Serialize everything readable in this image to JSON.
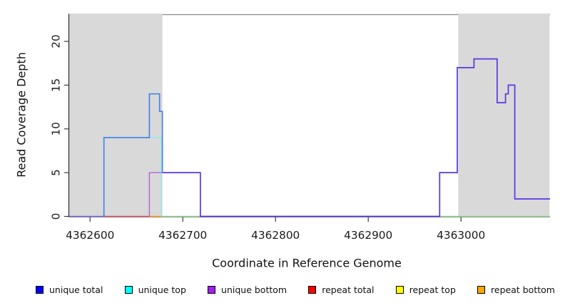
{
  "chart_data": {
    "type": "line",
    "subtype": "step-coverage-plot",
    "title": "",
    "xlabel": "Coordinate in Reference Genome",
    "ylabel": "Read Coverage Depth",
    "xlim": [
      4362577.5,
      4363096
    ],
    "ylim": [
      0,
      23.1
    ],
    "x_ticks": [
      4362600,
      4362700,
      4362800,
      4362900,
      4363000
    ],
    "y_ticks": [
      0,
      5,
      10,
      15,
      20
    ],
    "grid": false,
    "background_color": "#ffffff",
    "shaded_regions": [
      {
        "name": "left-repeat-region",
        "x0": 4362577.5,
        "x1": 4362678,
        "color": "#d9d9d9"
      },
      {
        "name": "right-repeat-region",
        "x0": 4362997,
        "x1": 4363095.5,
        "color": "#d9d9d9"
      }
    ],
    "series": [
      {
        "name": "baseline-green",
        "color": "#8fd88f",
        "width": 1.4,
        "points": [
          [
            4362677,
            0
          ],
          [
            4363096,
            0
          ]
        ]
      },
      {
        "name": "baseline-violet-left",
        "color": "#7668e6",
        "width": 1.6,
        "points": [
          [
            4362577.5,
            0
          ],
          [
            4362615,
            0
          ]
        ]
      },
      {
        "name": "repeat-total-red",
        "color": "#e0506b",
        "width": 1.4,
        "points": [
          [
            4362615,
            0
          ],
          [
            4362664,
            0
          ]
        ]
      },
      {
        "name": "repeat-bottom-orange",
        "color": "#ff9f1e",
        "width": 1.6,
        "points": [
          [
            4362664,
            0
          ],
          [
            4362677,
            0
          ]
        ]
      },
      {
        "name": "unique-top-cyan",
        "color": "#93ebee",
        "width": 1.4,
        "points": [
          [
            4362664,
            9
          ],
          [
            4362677,
            9
          ],
          [
            4362677,
            0
          ]
        ]
      },
      {
        "name": "unique-bottom-purple",
        "color": "#b06fd8",
        "width": 1.5,
        "points": [
          [
            4362664,
            0
          ],
          [
            4362664,
            5
          ],
          [
            4362678,
            5
          ]
        ]
      },
      {
        "name": "unique-total-and-bottom-overlap",
        "color": "#5b35e3",
        "width": 1.7,
        "points": [
          [
            4362678,
            5
          ],
          [
            4362719,
            5
          ],
          [
            4362719,
            0
          ],
          [
            4362977,
            0
          ],
          [
            4362977,
            5
          ],
          [
            4362996,
            5
          ],
          [
            4362996,
            17
          ],
          [
            4363014,
            17
          ],
          [
            4363014,
            18
          ],
          [
            4363039,
            18
          ],
          [
            4363039,
            13
          ],
          [
            4363048,
            13
          ],
          [
            4363048,
            14
          ],
          [
            4363051,
            14
          ],
          [
            4363051,
            15
          ],
          [
            4363058,
            15
          ],
          [
            4363058,
            2
          ],
          [
            4363096,
            2
          ]
        ]
      },
      {
        "name": "unique-total-blue",
        "color": "#4583e7",
        "width": 1.7,
        "points": [
          [
            4362615,
            0
          ],
          [
            4362615,
            9
          ],
          [
            4362664,
            9
          ],
          [
            4362664,
            14
          ],
          [
            4362675,
            14
          ],
          [
            4362675,
            12
          ],
          [
            4362678,
            12
          ],
          [
            4362678,
            5
          ]
        ]
      }
    ],
    "axis_colors": {
      "y_axis": "#2a2a2a",
      "x_axis": "#8a8a8a",
      "top_border": "#8a8a8a",
      "tick": "#3a3a3a",
      "tick_label": "#1a1a1a"
    }
  },
  "legend": {
    "items": [
      {
        "label": "unique total",
        "color": "#0000ff"
      },
      {
        "label": "unique top",
        "color": "#00ffff"
      },
      {
        "label": "unique bottom",
        "color": "#a020f0"
      },
      {
        "label": "repeat total",
        "color": "#ff0000"
      },
      {
        "label": "repeat top",
        "color": "#ffff00"
      },
      {
        "label": "repeat bottom",
        "color": "#ffa500"
      }
    ]
  }
}
